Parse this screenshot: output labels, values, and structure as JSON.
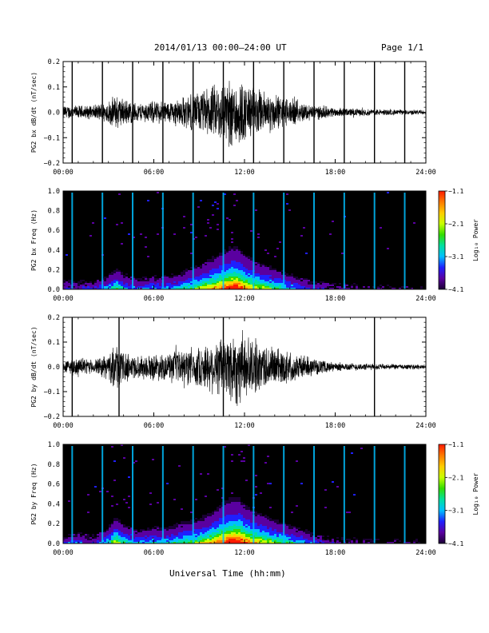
{
  "header": {
    "title": "2014/01/13  00:00–24:00 UT",
    "page": "Page 1/1"
  },
  "x_axis_title": "Universal Time (hh:mm)",
  "colors": {
    "background": "#ffffff",
    "trace": "#000000",
    "spectrogram_background": "#000000",
    "colormap": [
      "#1a0033",
      "#5a00a0",
      "#1f1fff",
      "#00bfff",
      "#00e0a0",
      "#33dd00",
      "#c8ff00",
      "#ffcc00",
      "#ff7a00",
      "#ff1a00"
    ]
  },
  "chart_data": [
    {
      "type": "line",
      "ylabel": "PG2 bx dB/dt (nT/sec)",
      "xlim": [
        0,
        24
      ],
      "ylim": [
        -0.2,
        0.2
      ],
      "xticks": [
        "00:00",
        "06:00",
        "12:00",
        "18:00",
        "24:00"
      ],
      "yticks": [
        "−0.2",
        "−0.1",
        "0.0",
        "0.1",
        "0.2"
      ],
      "envelope": {
        "hours": [
          0,
          1,
          2,
          3,
          3.5,
          4,
          5,
          6,
          7,
          8,
          9,
          10,
          11,
          11.5,
          12,
          13,
          14,
          15,
          16,
          17,
          18,
          20,
          22,
          24
        ],
        "amplitude": [
          0.03,
          0.03,
          0.03,
          0.05,
          0.08,
          0.06,
          0.04,
          0.05,
          0.05,
          0.07,
          0.09,
          0.12,
          0.15,
          0.16,
          0.13,
          0.1,
          0.08,
          0.06,
          0.04,
          0.03,
          0.02,
          0.015,
          0.012,
          0.01
        ]
      },
      "spikes_hours": [
        0.6,
        2.6,
        4.6,
        6.6,
        8.6,
        10.6,
        12.6,
        14.6,
        16.6,
        18.6,
        20.6,
        22.6
      ]
    },
    {
      "type": "heatmap",
      "ylabel": "PG2 bx Freq (Hz)",
      "xlim": [
        0,
        24
      ],
      "ylim": [
        0,
        1.0
      ],
      "xticks": [
        "00:00",
        "06:00",
        "12:00",
        "18:00",
        "24:00"
      ],
      "yticks": [
        "0.0",
        "0.2",
        "0.4",
        "0.6",
        "0.8",
        "1.0"
      ],
      "colorbar": {
        "label": "Log₁₀ Power",
        "ticks": [
          "−1.1",
          "−2.1",
          "−3.1",
          "−4.1"
        ],
        "range": [
          -4.1,
          -1.1
        ]
      },
      "vertical_lines_hours": [
        0.6,
        2.6,
        4.6,
        6.6,
        8.6,
        10.6,
        12.6,
        14.6,
        16.6,
        18.6,
        20.6,
        22.6
      ]
    },
    {
      "type": "line",
      "ylabel": "PG2 by dB/dt (nT/sec)",
      "xlim": [
        0,
        24
      ],
      "ylim": [
        -0.2,
        0.2
      ],
      "xticks": [
        "00:00",
        "06:00",
        "12:00",
        "18:00",
        "24:00"
      ],
      "yticks": [
        "−0.2",
        "−0.1",
        "0.0",
        "0.1",
        "0.2"
      ],
      "envelope": {
        "hours": [
          0,
          1,
          2,
          3,
          3.5,
          4,
          5,
          6,
          7,
          8,
          9,
          10,
          11,
          11.5,
          12,
          13,
          14,
          15,
          16,
          17,
          18,
          20,
          22,
          24
        ],
        "amplitude": [
          0.03,
          0.04,
          0.03,
          0.06,
          0.1,
          0.07,
          0.05,
          0.06,
          0.06,
          0.08,
          0.09,
          0.12,
          0.16,
          0.18,
          0.14,
          0.11,
          0.09,
          0.07,
          0.05,
          0.03,
          0.02,
          0.015,
          0.012,
          0.01
        ]
      },
      "spikes_hours": [
        0.6,
        3.7,
        10.6,
        20.6
      ]
    },
    {
      "type": "heatmap",
      "ylabel": "PG2 by Freq (Hz)",
      "xlim": [
        0,
        24
      ],
      "ylim": [
        0,
        1.0
      ],
      "xticks": [
        "00:00",
        "06:00",
        "12:00",
        "18:00",
        "24:00"
      ],
      "yticks": [
        "0.0",
        "0.2",
        "0.4",
        "0.6",
        "0.8",
        "1.0"
      ],
      "colorbar": {
        "label": "Log₁₀ Power",
        "ticks": [
          "−1.1",
          "−2.1",
          "−3.1",
          "−4.1"
        ],
        "range": [
          -4.1,
          -1.1
        ]
      },
      "vertical_lines_hours": [
        0.6,
        2.6,
        4.6,
        6.6,
        8.6,
        10.6,
        12.6,
        14.6,
        16.6,
        18.6,
        20.6,
        22.6
      ]
    }
  ]
}
